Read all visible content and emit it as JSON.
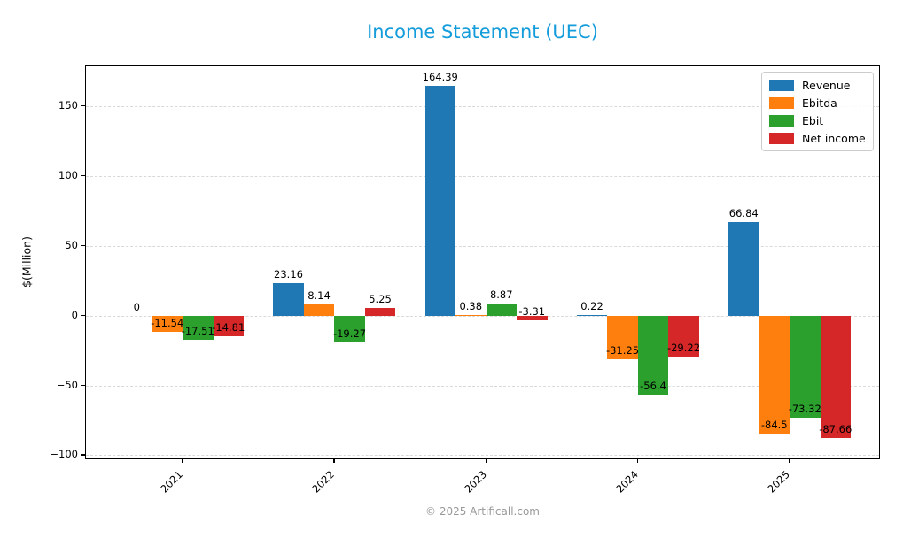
{
  "title": "Income Statement (UEC)",
  "title_color": "#149CDB",
  "footer": "© 2025 Artificall.com",
  "footer_color": "#999999",
  "chart_data": {
    "type": "bar",
    "title": "Income Statement (UEC)",
    "xlabel": "",
    "ylabel": "$(Million)",
    "categories": [
      "2021",
      "2022",
      "2023",
      "2024",
      "2025"
    ],
    "series": [
      {
        "name": "Revenue",
        "color": "#1f77b4",
        "values": [
          0,
          23.16,
          164.39,
          0.22,
          66.84
        ]
      },
      {
        "name": "Ebitda",
        "color": "#ff7f0e",
        "values": [
          -11.54,
          8.14,
          0.38,
          -31.25,
          -84.5
        ]
      },
      {
        "name": "Ebit",
        "color": "#2ca02c",
        "values": [
          -17.51,
          -19.27,
          8.87,
          -56.4,
          -73.32
        ]
      },
      {
        "name": "Net income",
        "color": "#d62728",
        "values": [
          -14.81,
          5.25,
          -3.31,
          -29.22,
          -87.66
        ]
      }
    ],
    "ylim": [
      -103.5,
      178.3
    ],
    "yticks": [
      150,
      100,
      50,
      0,
      -50,
      -100
    ],
    "ytick_labels": [
      "150",
      "100",
      "50",
      "0",
      "−50",
      "−100"
    ],
    "grid": "horizontal-dashed",
    "grid_color": "#d9d9d9",
    "axis_color": "#000000",
    "legend_position": "top-right",
    "bar_label_color": "#000000"
  }
}
